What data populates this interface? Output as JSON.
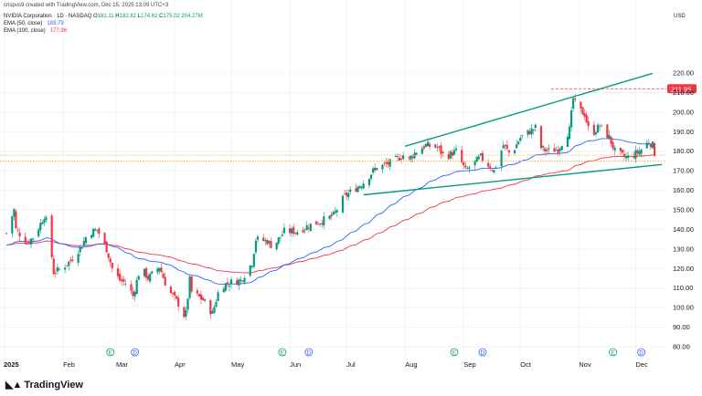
{
  "header": {
    "credit": "crispus9 created with TradingView.com, Dec 15, 2025 13:09 UTC+3",
    "symbol": "NVIDIA Corporation · 1D · NASDAQ",
    "ohlc": {
      "o": "181.11",
      "h": "182.82",
      "l": "174.62",
      "c": "175.02",
      "vol": "204.27M"
    },
    "ema50_label": "EMA (50, close)",
    "ema50_value": "183.79",
    "ema100_label": "EMA (100, close)",
    "ema100_value": "177.96",
    "currency": "USD"
  },
  "colors": {
    "up": "#089981",
    "down": "#f23645",
    "ema50": "#2962ff",
    "ema100": "#f23645",
    "trendline": "#089981",
    "price_line": "#ff9800",
    "high_badge": "#f23645"
  },
  "brand": "TradingView",
  "chart_data": {
    "type": "candlestick",
    "ylim": [
      80,
      220
    ],
    "yticks": [
      "220.00",
      "210.00",
      "200.00",
      "190.00",
      "180.00",
      "170.00",
      "160.00",
      "150.00",
      "140.00",
      "130.00",
      "120.00",
      "110.00",
      "100.00",
      "90.00",
      "80.00"
    ],
    "xticks": [
      "2025",
      "Feb",
      "Mar",
      "Apr",
      "May",
      "Jun",
      "Jul",
      "Aug",
      "Sep",
      "Oct",
      "Nov",
      "Dec"
    ],
    "high_marker": "211.95",
    "price_lines": [
      177.96,
      175.02
    ],
    "event_markers": [
      {
        "label": "E",
        "date": "Feb 26"
      },
      {
        "label": "D",
        "date": "Mar 11"
      },
      {
        "label": "E",
        "date": "May 28"
      },
      {
        "label": "D",
        "date": "Jun 11"
      },
      {
        "label": "E",
        "date": "Aug 27"
      },
      {
        "label": "D",
        "date": "Sep 11"
      },
      {
        "label": "E",
        "date": "Nov 19"
      },
      {
        "label": "D",
        "date": "Dec 4"
      }
    ],
    "trendlines": [
      {
        "name": "upper",
        "from": {
          "date": "Aug 1",
          "value": 182.5
        },
        "to": {
          "date": "Dec 10",
          "value": 219.8
        }
      },
      {
        "name": "lower",
        "from": {
          "date": "Jul 10",
          "value": 157.7
        },
        "to": {
          "date": "Dec 15",
          "value": 173.2
        }
      }
    ],
    "closes": [
      {
        "date": "Jan 2",
        "close": 138
      },
      {
        "date": "Jan 6",
        "close": 150
      },
      {
        "date": "Jan 7",
        "close": 140
      },
      {
        "date": "Jan 13",
        "close": 133
      },
      {
        "date": "Jan 17",
        "close": 137
      },
      {
        "date": "Jan 22",
        "close": 147
      },
      {
        "date": "Jan 24",
        "close": 142
      },
      {
        "date": "Jan 27",
        "close": 118
      },
      {
        "date": "Jan 31",
        "close": 120
      },
      {
        "date": "Feb 5",
        "close": 124
      },
      {
        "date": "Feb 11",
        "close": 132
      },
      {
        "date": "Feb 14",
        "close": 138
      },
      {
        "date": "Feb 19",
        "close": 140
      },
      {
        "date": "Feb 24",
        "close": 130
      },
      {
        "date": "Feb 27",
        "close": 120
      },
      {
        "date": "Mar 3",
        "close": 114
      },
      {
        "date": "Mar 7",
        "close": 112
      },
      {
        "date": "Mar 10",
        "close": 106
      },
      {
        "date": "Mar 14",
        "close": 121
      },
      {
        "date": "Mar 18",
        "close": 115
      },
      {
        "date": "Mar 24",
        "close": 121
      },
      {
        "date": "Mar 28",
        "close": 110
      },
      {
        "date": "Apr 3",
        "close": 102
      },
      {
        "date": "Apr 4",
        "close": 94
      },
      {
        "date": "Apr 7",
        "close": 97
      },
      {
        "date": "Apr 9",
        "close": 114
      },
      {
        "date": "Apr 10",
        "close": 108
      },
      {
        "date": "Apr 16",
        "close": 104
      },
      {
        "date": "Apr 21",
        "close": 97
      },
      {
        "date": "Apr 25",
        "close": 111
      },
      {
        "date": "May 1",
        "close": 113
      },
      {
        "date": "May 6",
        "close": 114
      },
      {
        "date": "May 12",
        "close": 123
      },
      {
        "date": "May 14",
        "close": 135
      },
      {
        "date": "May 20",
        "close": 134
      },
      {
        "date": "May 23",
        "close": 131
      },
      {
        "date": "May 29",
        "close": 139
      },
      {
        "date": "Jun 5",
        "close": 139
      },
      {
        "date": "Jun 11",
        "close": 142
      },
      {
        "date": "Jun 17",
        "close": 144
      },
      {
        "date": "Jun 24",
        "close": 147
      },
      {
        "date": "Jun 30",
        "close": 157
      },
      {
        "date": "Jul 3",
        "close": 159
      },
      {
        "date": "Jul 10",
        "close": 164
      },
      {
        "date": "Jul 16",
        "close": 171
      },
      {
        "date": "Jul 24",
        "close": 174
      },
      {
        "date": "Jul 31",
        "close": 178
      },
      {
        "date": "Aug 1",
        "close": 174
      },
      {
        "date": "Aug 7",
        "close": 180
      },
      {
        "date": "Aug 12",
        "close": 183
      },
      {
        "date": "Aug 18",
        "close": 182
      },
      {
        "date": "Aug 22",
        "close": 177
      },
      {
        "date": "Aug 28",
        "close": 180
      },
      {
        "date": "Sep 2",
        "close": 170
      },
      {
        "date": "Sep 10",
        "close": 177
      },
      {
        "date": "Sep 17",
        "close": 170
      },
      {
        "date": "Sep 22",
        "close": 183
      },
      {
        "date": "Sep 26",
        "close": 178
      },
      {
        "date": "Oct 1",
        "close": 187
      },
      {
        "date": "Oct 9",
        "close": 192
      },
      {
        "date": "Oct 10",
        "close": 183
      },
      {
        "date": "Oct 15",
        "close": 180
      },
      {
        "date": "Oct 21",
        "close": 181
      },
      {
        "date": "Oct 27",
        "close": 191
      },
      {
        "date": "Oct 29",
        "close": 207
      },
      {
        "date": "Oct 31",
        "close": 202
      },
      {
        "date": "Nov 4",
        "close": 199
      },
      {
        "date": "Nov 7",
        "close": 188
      },
      {
        "date": "Nov 12",
        "close": 193
      },
      {
        "date": "Nov 17",
        "close": 187
      },
      {
        "date": "Nov 20",
        "close": 180
      },
      {
        "date": "Nov 25",
        "close": 177
      },
      {
        "date": "Nov 28",
        "close": 177
      },
      {
        "date": "Dec 3",
        "close": 180
      },
      {
        "date": "Dec 8",
        "close": 185
      },
      {
        "date": "Dec 10",
        "close": 183
      },
      {
        "date": "Dec 12",
        "close": 175
      }
    ]
  }
}
